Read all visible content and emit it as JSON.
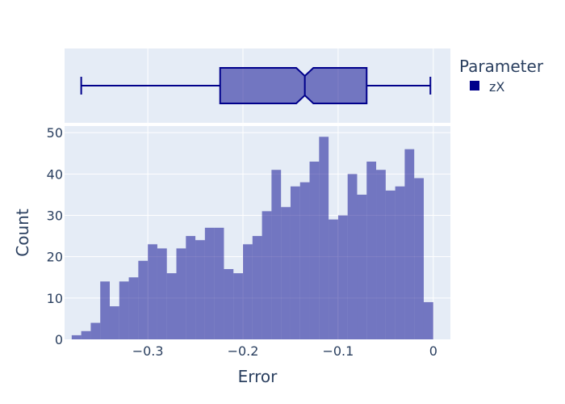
{
  "chart_data": {
    "type": "histogram",
    "xlabel": "Error",
    "ylabel": "Count",
    "legend": {
      "title": "Parameter",
      "placement": "right",
      "entries": [
        "zX"
      ]
    },
    "colors": {
      "series": "#00008b",
      "bar_fill": "rgba(0,0,139,0.5)",
      "plot_bg": "#e5ecf6",
      "grid": "#ffffff",
      "text": "#2a3f5f"
    },
    "grid": true,
    "xlim": [
      -0.3875,
      0.018
    ],
    "ylim": [
      0,
      51.6
    ],
    "x_ticks": [
      {
        "value": -0.3,
        "label": "−0.3"
      },
      {
        "value": -0.2,
        "label": "−0.2"
      },
      {
        "value": -0.1,
        "label": "−0.1"
      },
      {
        "value": 0,
        "label": "0"
      }
    ],
    "y_ticks": [
      {
        "value": 0,
        "label": "0"
      },
      {
        "value": 10,
        "label": "10"
      },
      {
        "value": 20,
        "label": "20"
      },
      {
        "value": 30,
        "label": "30"
      },
      {
        "value": 40,
        "label": "40"
      },
      {
        "value": 50,
        "label": "50"
      }
    ],
    "series": [
      {
        "name": "zX",
        "histogram": {
          "bin_start": -0.38,
          "bin_width": 0.01,
          "counts": [
            1,
            2,
            4,
            14,
            8,
            14,
            15,
            19,
            23,
            22,
            16,
            22,
            25,
            24,
            27,
            27,
            17,
            16,
            23,
            25,
            31,
            41,
            32,
            37,
            38,
            43,
            49,
            29,
            30,
            40,
            35,
            43,
            41,
            36,
            37,
            46,
            39,
            9
          ]
        },
        "box": {
          "lower_whisker": -0.37,
          "q1": -0.224,
          "median": -0.135,
          "q3": -0.07,
          "upper_whisker": -0.003,
          "notch_low": -0.144,
          "notch_high": -0.126
        }
      }
    ]
  }
}
